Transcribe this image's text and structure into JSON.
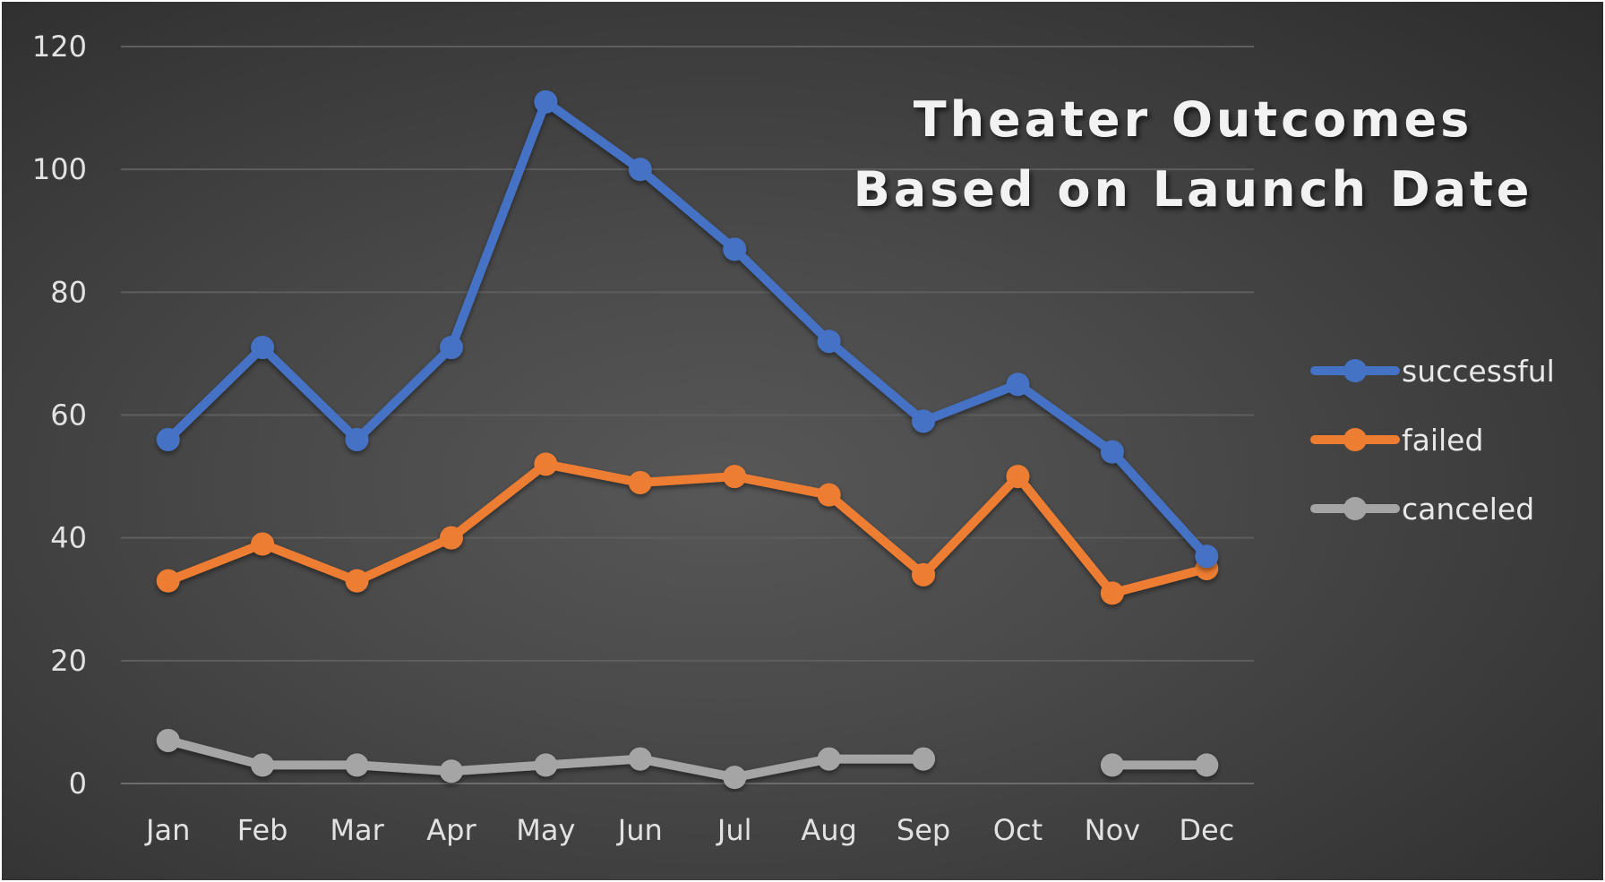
{
  "chart_data": {
    "type": "line",
    "title_lines": [
      "Theater Outcomes",
      "Based on Launch Date"
    ],
    "categories": [
      "Jan",
      "Feb",
      "Mar",
      "Apr",
      "May",
      "Jun",
      "Jul",
      "Aug",
      "Sep",
      "Oct",
      "Nov",
      "Dec"
    ],
    "series": [
      {
        "name": "successful",
        "color": "#4472c4",
        "values": [
          56,
          71,
          56,
          71,
          111,
          100,
          87,
          72,
          59,
          65,
          54,
          37
        ]
      },
      {
        "name": "failed",
        "color": "#ed7d31",
        "values": [
          33,
          39,
          33,
          40,
          52,
          49,
          50,
          47,
          34,
          50,
          31,
          35
        ]
      },
      {
        "name": "canceled",
        "color": "#a5a5a5",
        "values": [
          7,
          3,
          3,
          2,
          3,
          4,
          1,
          4,
          4,
          null,
          3,
          3
        ]
      }
    ],
    "yticks": [
      0,
      20,
      40,
      60,
      80,
      100,
      120
    ],
    "ylim": [
      0,
      120
    ],
    "grid": true,
    "legend_position": "right"
  }
}
